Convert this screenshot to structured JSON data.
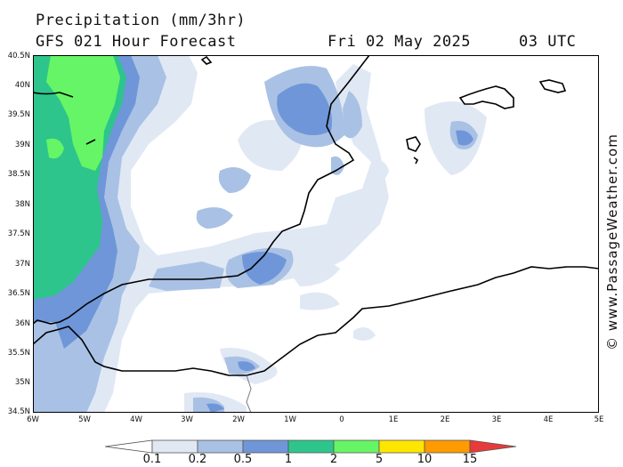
{
  "title": "Precipitation (mm/3hr)",
  "subtitle": "GFS 021 Hour Forecast",
  "valid_date": "Fri 02 May 2025",
  "valid_time": "03 UTC",
  "watermark": "© www.PassageWeather.com",
  "lat_labels": [
    "40.5N",
    "40N",
    "39.5N",
    "39N",
    "38.5N",
    "38N",
    "37.5N",
    "37N",
    "36.5N",
    "36N",
    "35.5N",
    "35N",
    "34.5N"
  ],
  "lon_labels": [
    "6W",
    "5W",
    "4W",
    "3W",
    "2W",
    "1W",
    "0",
    "1E",
    "2E",
    "3E",
    "4E",
    "5E"
  ],
  "legend": {
    "labels": [
      "0.1",
      "0.2",
      "0.5",
      "1",
      "2",
      "5",
      "10",
      "15"
    ],
    "colors": [
      "#ffffff",
      "#e0e8f4",
      "#a9c1e4",
      "#6f96d8",
      "#2dc58c",
      "#66f566",
      "#ffe600",
      "#ff9a00",
      "#e83a3a"
    ]
  },
  "colors": {
    "coast": "#000000",
    "border": "#7a7a7a"
  }
}
